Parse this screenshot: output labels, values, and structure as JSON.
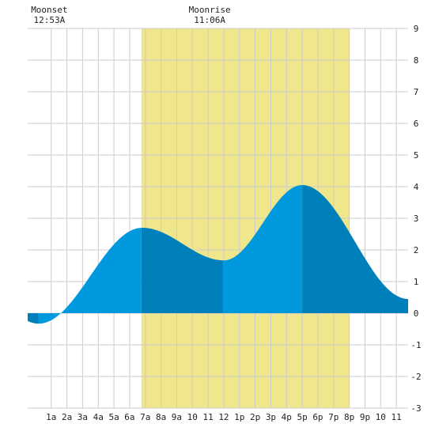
{
  "chart_data": {
    "type": "area",
    "title": "",
    "xlabel": "",
    "ylabel": "",
    "x_range_hours": [
      -0.5,
      23.75
    ],
    "ylim": [
      -3,
      9
    ],
    "y_ticks": [
      -3,
      -2,
      -1,
      0,
      1,
      2,
      3,
      4,
      5,
      6,
      7,
      8,
      9
    ],
    "x_ticks": [
      {
        "hour": 1,
        "label": "1a"
      },
      {
        "hour": 2,
        "label": "2a"
      },
      {
        "hour": 3,
        "label": "3a"
      },
      {
        "hour": 4,
        "label": "4a"
      },
      {
        "hour": 5,
        "label": "5a"
      },
      {
        "hour": 6,
        "label": "6a"
      },
      {
        "hour": 7,
        "label": "7a"
      },
      {
        "hour": 8,
        "label": "8a"
      },
      {
        "hour": 9,
        "label": "9a"
      },
      {
        "hour": 10,
        "label": "10"
      },
      {
        "hour": 11,
        "label": "11"
      },
      {
        "hour": 12,
        "label": "12"
      },
      {
        "hour": 13,
        "label": "1p"
      },
      {
        "hour": 14,
        "label": "2p"
      },
      {
        "hour": 15,
        "label": "3p"
      },
      {
        "hour": 16,
        "label": "4p"
      },
      {
        "hour": 17,
        "label": "5p"
      },
      {
        "hour": 18,
        "label": "6p"
      },
      {
        "hour": 19,
        "label": "7p"
      },
      {
        "hour": 20,
        "label": "8p"
      },
      {
        "hour": 21,
        "label": "9p"
      },
      {
        "hour": 22,
        "label": "10"
      },
      {
        "hour": 23,
        "label": "11"
      }
    ],
    "daylight": {
      "start_hour": 6.75,
      "end_hour": 20.0
    },
    "moon_events": [
      {
        "label": "Moonset",
        "time": "12:53A",
        "hour": 0.88
      },
      {
        "label": "Moonrise",
        "time": "11:06A",
        "hour": 11.1
      }
    ],
    "tide_extremes": [
      {
        "type": "low",
        "hour": 0.2,
        "value": -0.33
      },
      {
        "type": "high",
        "hour": 6.8,
        "value": 2.7
      },
      {
        "type": "low",
        "hour": 12.0,
        "value": 1.67
      },
      {
        "type": "high",
        "hour": 17.0,
        "value": 4.05
      },
      {
        "type": "low",
        "hour": 23.75,
        "value": 0.45
      }
    ],
    "shading_boundaries_hours": [
      0.18,
      6.75,
      11.95,
      17.0
    ],
    "grid": true,
    "colors": {
      "background": "#ffffff",
      "night": "#ffffff",
      "daylight": "#f0e68c",
      "grid": "#cccccc",
      "tide_light": "#0099dd",
      "tide_dark": "#0080bb"
    }
  }
}
